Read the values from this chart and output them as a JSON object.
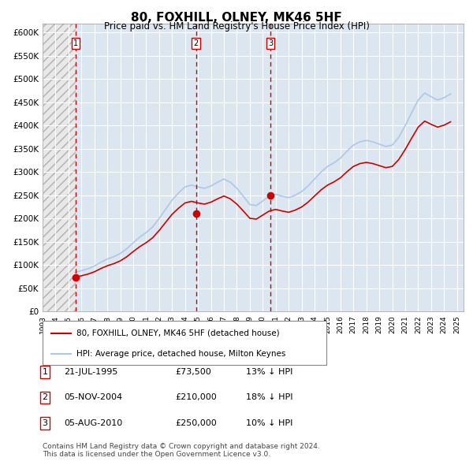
{
  "title": "80, FOXHILL, OLNEY, MK46 5HF",
  "subtitle": "Price paid vs. HM Land Registry's House Price Index (HPI)",
  "ylabel_ticks": [
    "£0",
    "£50K",
    "£100K",
    "£150K",
    "£200K",
    "£250K",
    "£300K",
    "£350K",
    "£400K",
    "£450K",
    "£500K",
    "£550K",
    "£600K"
  ],
  "ytick_values": [
    0,
    50000,
    100000,
    150000,
    200000,
    250000,
    300000,
    350000,
    400000,
    450000,
    500000,
    550000,
    600000
  ],
  "xmin": 1993.0,
  "xmax": 2025.5,
  "ymin": 0,
  "ymax": 620000,
  "sale_dates": [
    1995.55,
    2004.84,
    2010.59
  ],
  "sale_prices": [
    73500,
    210000,
    250000
  ],
  "sale_labels": [
    "1",
    "2",
    "3"
  ],
  "hpi_line_color": "#aec6e8",
  "sale_line_color": "#cc0000",
  "sale_dot_color": "#cc0000",
  "dashed_line_color": "#cc0000",
  "background_hatch_color": "#d0d0d0",
  "grid_color": "#c0c8d8",
  "legend_line1": "80, FOXHILL, OLNEY, MK46 5HF (detached house)",
  "legend_line2": "HPI: Average price, detached house, Milton Keynes",
  "table_rows": [
    {
      "num": "1",
      "date": "21-JUL-1995",
      "price": "£73,500",
      "hpi": "13% ↓ HPI"
    },
    {
      "num": "2",
      "date": "05-NOV-2004",
      "price": "£210,000",
      "hpi": "18% ↓ HPI"
    },
    {
      "num": "3",
      "date": "05-AUG-2010",
      "price": "£250,000",
      "hpi": "10% ↓ HPI"
    }
  ],
  "footnote": "Contains HM Land Registry data © Crown copyright and database right 2024.\nThis data is licensed under the Open Government Licence v3.0.",
  "hpi_data_x": [
    1995.5,
    1996.0,
    1996.5,
    1997.0,
    1997.5,
    1998.0,
    1998.5,
    1999.0,
    1999.5,
    2000.0,
    2000.5,
    2001.0,
    2001.5,
    2002.0,
    2002.5,
    2003.0,
    2003.5,
    2004.0,
    2004.5,
    2005.0,
    2005.5,
    2006.0,
    2006.5,
    2007.0,
    2007.5,
    2008.0,
    2008.5,
    2009.0,
    2009.5,
    2010.0,
    2010.5,
    2011.0,
    2011.5,
    2012.0,
    2012.5,
    2013.0,
    2013.5,
    2014.0,
    2014.5,
    2015.0,
    2015.5,
    2016.0,
    2016.5,
    2017.0,
    2017.5,
    2018.0,
    2018.5,
    2019.0,
    2019.5,
    2020.0,
    2020.5,
    2021.0,
    2021.5,
    2022.0,
    2022.5,
    2023.0,
    2023.5,
    2024.0,
    2024.5
  ],
  "hpi_data_y": [
    84000,
    88000,
    92000,
    98000,
    106000,
    113000,
    118000,
    125000,
    135000,
    148000,
    160000,
    170000,
    182000,
    200000,
    220000,
    240000,
    255000,
    268000,
    272000,
    268000,
    265000,
    270000,
    278000,
    285000,
    278000,
    265000,
    248000,
    230000,
    228000,
    238000,
    248000,
    252000,
    248000,
    245000,
    250000,
    258000,
    270000,
    285000,
    300000,
    312000,
    320000,
    330000,
    345000,
    358000,
    365000,
    368000,
    365000,
    360000,
    355000,
    358000,
    375000,
    400000,
    428000,
    455000,
    470000,
    462000,
    455000,
    460000,
    468000
  ],
  "property_hpi_x": [
    1995.5,
    1996.0,
    1996.5,
    1997.0,
    1997.5,
    1998.0,
    1998.5,
    1999.0,
    1999.5,
    2000.0,
    2000.5,
    2001.0,
    2001.5,
    2002.0,
    2002.5,
    2003.0,
    2003.5,
    2004.0,
    2004.5,
    2005.0,
    2005.5,
    2006.0,
    2006.5,
    2007.0,
    2007.5,
    2008.0,
    2008.5,
    2009.0,
    2009.5,
    2010.0,
    2010.5,
    2011.0,
    2011.5,
    2012.0,
    2012.5,
    2013.0,
    2013.5,
    2014.0,
    2014.5,
    2015.0,
    2015.5,
    2016.0,
    2016.5,
    2017.0,
    2017.5,
    2018.0,
    2018.5,
    2019.0,
    2019.5,
    2020.0,
    2020.5,
    2021.0,
    2021.5,
    2022.0,
    2022.5,
    2023.0,
    2023.5,
    2024.0,
    2024.5
  ],
  "property_hpi_y": [
    73500,
    77000,
    80500,
    85500,
    92500,
    98500,
    103000,
    109000,
    117800,
    129000,
    139500,
    148200,
    158700,
    174300,
    191800,
    209200,
    222300,
    233600,
    237000,
    233600,
    231000,
    235300,
    242300,
    248500,
    242300,
    231000,
    216200,
    200500,
    198800,
    207500,
    216200,
    219700,
    216200,
    213500,
    218000,
    224900,
    235300,
    248500,
    261600,
    271900,
    278900,
    287700,
    300700,
    312100,
    318200,
    320800,
    318200,
    313800,
    309400,
    312100,
    326900,
    348700,
    373100,
    396600,
    409600,
    402600,
    396600,
    400900,
    408000
  ],
  "xtick_years": [
    1993,
    1994,
    1995,
    1996,
    1997,
    1998,
    1999,
    2000,
    2001,
    2002,
    2003,
    2004,
    2005,
    2006,
    2007,
    2008,
    2009,
    2010,
    2011,
    2012,
    2013,
    2014,
    2015,
    2016,
    2017,
    2018,
    2019,
    2020,
    2021,
    2022,
    2023,
    2024,
    2025
  ]
}
